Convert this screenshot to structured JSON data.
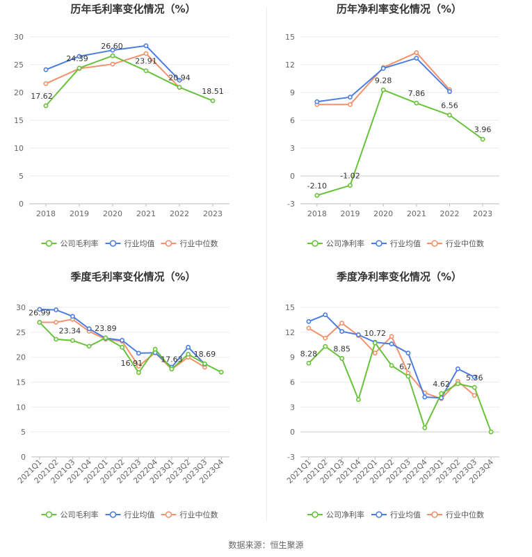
{
  "source": "数据来源：恒生聚源",
  "legend_names": [
    "公司毛利率",
    "行业均值",
    "行业中位数"
  ],
  "colors": {
    "company": "#67c23a",
    "avg": "#4a7de3",
    "median": "#f4906a"
  },
  "chart_data": [
    {
      "type": "line",
      "title": "历年毛利率变化情况（%）",
      "categories": [
        "2018",
        "2019",
        "2020",
        "2021",
        "2022",
        "2023"
      ],
      "ylim": [
        0,
        30
      ],
      "yticks": [
        0,
        5,
        10,
        15,
        20,
        25,
        30
      ],
      "grid": true,
      "legend_position": "bottom",
      "series": [
        {
          "name": "公司毛利率",
          "values": [
            17.62,
            24.39,
            26.6,
            23.91,
            20.94,
            18.51
          ]
        },
        {
          "name": "行业均值",
          "values": [
            24.1,
            26.5,
            27.6,
            28.4,
            22.2,
            null
          ]
        },
        {
          "name": "行业中位数",
          "values": [
            21.6,
            24.3,
            25.1,
            27.0,
            20.9,
            null
          ]
        }
      ],
      "data_labels": [
        17.62,
        24.39,
        26.6,
        23.91,
        20.94,
        18.51
      ]
    },
    {
      "type": "line",
      "title": "历年净利率变化情况（%）",
      "categories": [
        "2018",
        "2019",
        "2020",
        "2021",
        "2022",
        "2023"
      ],
      "ylim": [
        -3,
        15
      ],
      "yticks": [
        -3,
        0,
        3,
        6,
        9,
        12,
        15
      ],
      "grid": true,
      "legend_position": "bottom",
      "series": [
        {
          "name": "公司净利率",
          "values": [
            -2.1,
            -1.02,
            9.28,
            7.86,
            6.56,
            3.96
          ]
        },
        {
          "name": "行业均值",
          "values": [
            8.0,
            8.5,
            11.6,
            12.7,
            9.1,
            null
          ]
        },
        {
          "name": "行业中位数",
          "values": [
            7.7,
            7.7,
            11.7,
            13.3,
            9.3,
            null
          ]
        }
      ],
      "data_labels": [
        -2.1,
        -1.02,
        9.28,
        7.86,
        6.56,
        3.96
      ]
    },
    {
      "type": "line",
      "title": "季度毛利率变化情况（%）",
      "categories": [
        "2021Q1",
        "2021Q2",
        "2021Q3",
        "2021Q4",
        "2022Q1",
        "2022Q2",
        "2022Q3",
        "2022Q4",
        "2023Q1",
        "2023Q2",
        "2023Q3",
        "2023Q4"
      ],
      "ylim": [
        0,
        30
      ],
      "yticks": [
        0,
        5,
        10,
        15,
        20,
        25,
        30
      ],
      "grid": true,
      "legend_position": "bottom",
      "series": [
        {
          "name": "公司毛利率",
          "values": [
            26.99,
            23.6,
            23.34,
            22.2,
            23.89,
            22.0,
            16.91,
            21.6,
            17.63,
            20.6,
            18.69,
            17.0
          ]
        },
        {
          "name": "行业均值",
          "values": [
            29.6,
            29.5,
            28.2,
            25.7,
            23.8,
            23.4,
            20.8,
            20.9,
            18.0,
            22.0,
            18.6,
            null
          ]
        },
        {
          "name": "行业中位数",
          "values": [
            27.0,
            27.0,
            27.6,
            25.2,
            23.6,
            23.2,
            18.2,
            20.9,
            17.6,
            20.0,
            18.0,
            null
          ]
        }
      ],
      "data_labels": [
        {
          "index": 0,
          "text": "26.99"
        },
        {
          "index": 2,
          "text": "23.34"
        },
        {
          "index": 4,
          "text": "23.89"
        },
        {
          "index": 6,
          "text": "16.91"
        },
        {
          "index": 8,
          "text": "17.63"
        },
        {
          "index": 10,
          "text": "18.69"
        }
      ]
    },
    {
      "type": "line",
      "title": "季度净利率变化情况（%）",
      "categories": [
        "2021Q1",
        "2021Q2",
        "2021Q3",
        "2021Q4",
        "2022Q1",
        "2022Q2",
        "2022Q3",
        "2022Q4",
        "2023Q1",
        "2023Q2",
        "2023Q3",
        "2023Q4"
      ],
      "ylim": [
        -3,
        15
      ],
      "yticks": [
        -3,
        0,
        3,
        6,
        9,
        12,
        15
      ],
      "grid": true,
      "legend_position": "bottom",
      "series": [
        {
          "name": "公司净利率",
          "values": [
            8.28,
            10.3,
            8.85,
            3.9,
            10.72,
            8.0,
            6.7,
            0.5,
            4.62,
            5.8,
            5.36,
            0.0
          ]
        },
        {
          "name": "行业均值",
          "values": [
            13.3,
            14.1,
            12.1,
            11.7,
            10.8,
            10.6,
            9.5,
            4.2,
            4.1,
            7.6,
            6.6,
            null
          ]
        },
        {
          "name": "行业中位数",
          "values": [
            12.5,
            11.3,
            13.1,
            11.6,
            9.5,
            11.5,
            7.1,
            4.7,
            4.0,
            6.1,
            4.4,
            null
          ]
        }
      ],
      "data_labels": [
        {
          "index": 0,
          "text": "8.28"
        },
        {
          "index": 2,
          "text": "8.85"
        },
        {
          "index": 4,
          "text": "10.72"
        },
        {
          "index": 6,
          "text": "6.7"
        },
        {
          "index": 8,
          "text": "4.62"
        },
        {
          "index": 10,
          "text": "5.36"
        }
      ]
    }
  ]
}
